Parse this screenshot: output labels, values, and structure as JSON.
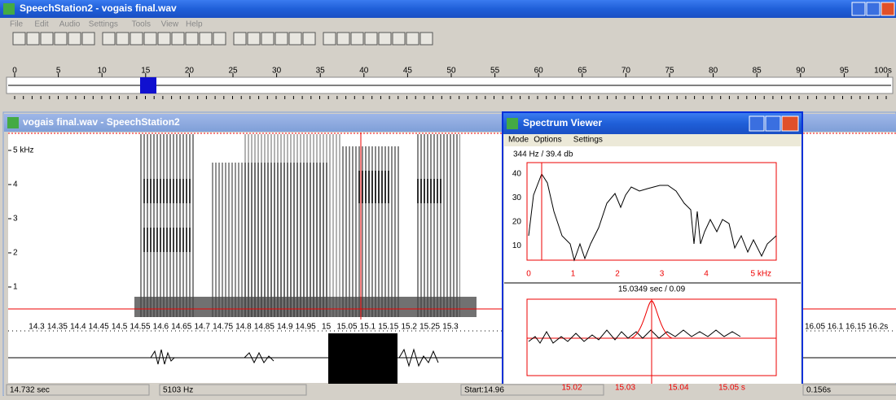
{
  "main_window": {
    "title": "SpeechStation2 - vogais final.wav",
    "menu": [
      "File",
      "Edit",
      "Audio",
      "Settings",
      "Tools",
      "View",
      "Help"
    ],
    "ruler_labels": [
      "0",
      "5",
      "10",
      "15",
      "20",
      "25",
      "30",
      "35",
      "40",
      "45",
      "50",
      "55",
      "60",
      "65",
      "70",
      "75",
      "80",
      "85",
      "90",
      "95",
      "100s"
    ]
  },
  "document_window": {
    "title": "vogais final.wav - SpeechStation2",
    "frequency_labels": [
      "5 kHz",
      "4",
      "3",
      "2",
      "1"
    ],
    "time_labels": [
      "14.3",
      "14.35",
      "14.4",
      "14.45",
      "14.5",
      "14.55",
      "14.6",
      "14.65",
      "14.7",
      "14.75",
      "14.8",
      "14.85",
      "14.9",
      "14.95",
      "15",
      "15.05",
      "15.1",
      "15.15",
      "15.2",
      "15.25",
      "15.3"
    ],
    "time_labels_right": "16.05 16.1 16.15 16.2s",
    "status": [
      "14.732 sec",
      "5103 Hz",
      "Start:14.96",
      "0.156s"
    ]
  },
  "spectrum_viewer": {
    "title": "Spectrum Viewer",
    "menu": [
      "Mode",
      "Options",
      "Settings"
    ],
    "readout": "344 Hz / 39.4 db",
    "y_labels": [
      "40",
      "30",
      "20",
      "10"
    ],
    "x_labels": [
      "0",
      "1",
      "2",
      "3",
      "4",
      "5 kHz"
    ],
    "time_readout": "15.0349 sec / 0.09",
    "time_labels": [
      "15.02",
      "15.03",
      "15.04",
      "15.05 s"
    ]
  }
}
